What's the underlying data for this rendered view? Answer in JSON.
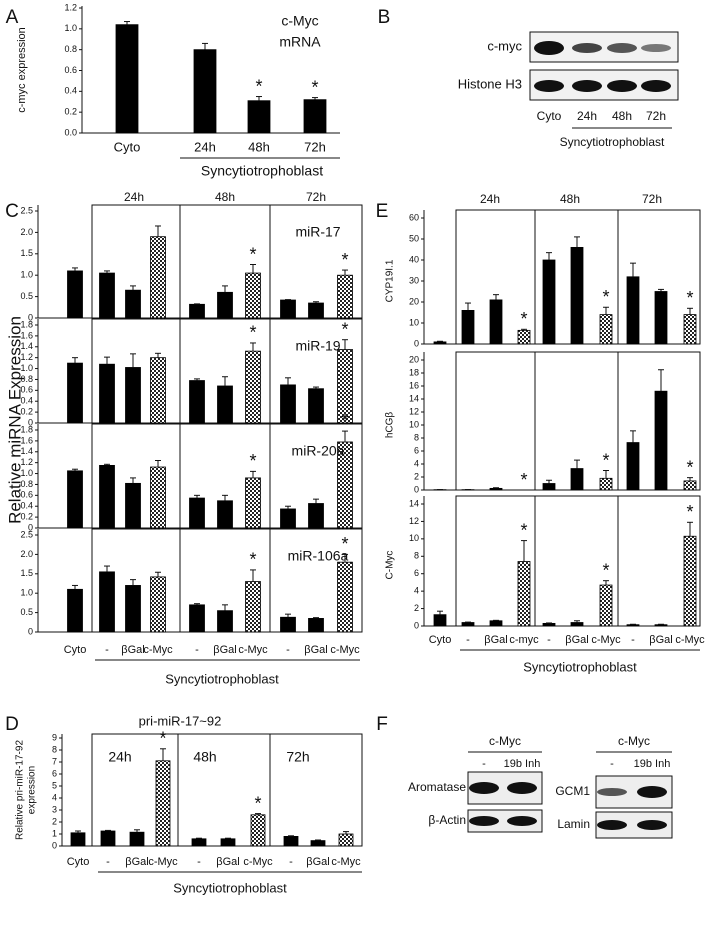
{
  "chart_data": [
    {
      "type": "bar",
      "label": "A",
      "ylabel": "c-myc expression",
      "annotation": [
        "c-Myc",
        "mRNA"
      ],
      "categories": [
        "Cyto",
        "24h",
        "48h",
        "72h"
      ],
      "group_label": "Syncytiotrophoblast",
      "color": "#000000",
      "ylim": [
        0,
        1.2
      ],
      "yticks": [
        {
          "value": 0,
          "label": "0.0"
        },
        0.2,
        0.4,
        0.6,
        0.8,
        {
          "value": 1,
          "label": "1.0"
        },
        1.2
      ],
      "values": [
        1.04,
        0.8,
        0.31,
        0.32
      ],
      "errors": [
        0.03,
        0.06,
        0.04,
        0.02
      ],
      "significance": [
        null,
        null,
        "*",
        "*"
      ]
    },
    {
      "type": "bar",
      "label": "C",
      "ylabel": "Relative miRNA Expression",
      "groups": [
        "24h",
        "48h",
        "72h"
      ],
      "categories": [
        "Cyto",
        "-",
        "βGal",
        "c-Myc",
        "-",
        "βGal",
        "c-Myc",
        "-",
        "βGal",
        "c-Myc"
      ],
      "group_label": "Syncytiotrophoblast",
      "color": "#000000",
      "subplots": [
        {
          "title": "miR-17",
          "ylim": [
            0,
            2.5
          ],
          "yticks": [
            0,
            0.5,
            {
              "value": 1,
              "label": "1.0"
            },
            1.5,
            {
              "value": 2,
              "label": "2.0"
            },
            2.5
          ],
          "values": [
            1.1,
            1.05,
            0.65,
            1.9,
            0.32,
            0.6,
            1.05,
            0.42,
            0.35,
            1.0
          ],
          "errors": [
            0.07,
            0.05,
            0.1,
            0.25,
            0.01,
            0.15,
            0.2,
            0.01,
            0.03,
            0.12
          ],
          "significance": [
            null,
            null,
            null,
            null,
            null,
            null,
            "*",
            null,
            null,
            "*"
          ]
        },
        {
          "title": "miR-19",
          "ylim": [
            0,
            1.8
          ],
          "yticks": [
            0,
            0.2,
            0.4,
            0.6,
            0.8,
            {
              "value": 1,
              "label": "1.0"
            },
            1.2,
            1.4,
            1.6,
            1.8
          ],
          "values": [
            1.1,
            1.08,
            1.02,
            1.2,
            0.78,
            0.68,
            1.32,
            0.7,
            0.63,
            1.35
          ],
          "errors": [
            0.1,
            0.13,
            0.25,
            0.08,
            0.03,
            0.17,
            0.15,
            0.13,
            0.03,
            0.18
          ],
          "significance": [
            null,
            null,
            null,
            null,
            null,
            null,
            "*",
            null,
            null,
            "*"
          ]
        },
        {
          "title": "miR-20a",
          "ylim": [
            0,
            1.8
          ],
          "yticks": [
            0,
            0.2,
            0.4,
            0.6,
            0.8,
            {
              "value": 1,
              "label": "1.0"
            },
            1.2,
            1.4,
            1.6,
            1.8
          ],
          "values": [
            1.05,
            1.15,
            0.82,
            1.12,
            0.55,
            0.5,
            0.92,
            0.35,
            0.45,
            1.58
          ],
          "errors": [
            0.03,
            0.02,
            0.1,
            0.12,
            0.05,
            0.1,
            0.12,
            0.05,
            0.08,
            0.2
          ],
          "significance": [
            null,
            null,
            null,
            null,
            null,
            null,
            "*",
            null,
            null,
            "*"
          ]
        },
        {
          "title": "miR-106a",
          "ylim": [
            0,
            2.5
          ],
          "yticks": [
            0,
            0.5,
            {
              "value": 1,
              "label": "1.0"
            },
            1.5,
            {
              "value": 2,
              "label": "2.0"
            },
            2.5
          ],
          "values": [
            1.1,
            1.55,
            1.2,
            1.42,
            0.7,
            0.55,
            1.3,
            0.38,
            0.35,
            1.8
          ],
          "errors": [
            0.1,
            0.15,
            0.15,
            0.12,
            0.03,
            0.15,
            0.3,
            0.08,
            0.02,
            0.2
          ],
          "significance": [
            null,
            null,
            null,
            null,
            null,
            null,
            "*",
            null,
            null,
            "*"
          ]
        }
      ]
    },
    {
      "type": "bar",
      "label": "D",
      "title": "pri-miR-17~92",
      "ylabel": [
        "Relative pri-miR-17-92",
        "expression"
      ],
      "groups": [
        "24h",
        "48h",
        "72h"
      ],
      "categories": [
        "Cyto",
        "-",
        "βGal",
        "c-Myc",
        "-",
        "βGal",
        "c-Myc",
        "-",
        "βGal",
        "c-Myc"
      ],
      "group_label": "Syncytiotrophoblast",
      "color": "#000000",
      "ylim": [
        0,
        9
      ],
      "yticks": [
        0,
        1,
        2,
        3,
        4,
        5,
        6,
        7,
        8,
        9
      ],
      "values": [
        1.1,
        1.25,
        1.15,
        7.1,
        0.6,
        0.6,
        2.6,
        0.8,
        0.45,
        1.0
      ],
      "errors": [
        0.15,
        0.05,
        0.2,
        1.0,
        0.05,
        0.05,
        0.1,
        0.05,
        0.05,
        0.2
      ],
      "significance": [
        null,
        null,
        null,
        "*",
        null,
        null,
        "*",
        null,
        null,
        null
      ]
    },
    {
      "type": "bar",
      "label": "E",
      "groups": [
        "24h",
        "48h",
        "72h"
      ],
      "categories": [
        "Cyto",
        "-",
        "βGal",
        "c-myc",
        "-",
        "βGal",
        "c-Myc",
        "-",
        "βGal",
        "c-Myc"
      ],
      "group_label": "Syncytiotrophoblast",
      "color": "#000000",
      "subplots": [
        {
          "ylabel": "CYP19I.1",
          "ylim": [
            0,
            60
          ],
          "yticks": [
            0,
            10,
            20,
            30,
            40,
            50,
            60
          ],
          "values": [
            1,
            16,
            21,
            6.5,
            40,
            46,
            14,
            32,
            25,
            14
          ],
          "errors": [
            0.3,
            3.5,
            2.5,
            0.5,
            3.5,
            5,
            3.5,
            6.5,
            1,
            3
          ],
          "significance": [
            null,
            null,
            null,
            "*",
            null,
            null,
            "*",
            null,
            null,
            "*"
          ]
        },
        {
          "ylabel": "hCGβ",
          "ylim": [
            0,
            20
          ],
          "yticks": [
            0,
            2,
            4,
            6,
            8,
            10,
            12,
            14,
            16,
            18,
            20
          ],
          "values": [
            0.05,
            0.05,
            0.25,
            0,
            1,
            3.3,
            1.8,
            7.3,
            15.2,
            1.4
          ],
          "errors": [
            0.02,
            0.02,
            0.1,
            0,
            0.5,
            1.3,
            1.2,
            1.8,
            3.3,
            0.5
          ],
          "significance": [
            null,
            null,
            null,
            "*",
            null,
            null,
            "*",
            null,
            null,
            "*"
          ]
        },
        {
          "ylabel": "C-Myc",
          "ylim": [
            0,
            14
          ],
          "yticks": [
            0,
            2,
            4,
            6,
            8,
            10,
            12,
            14
          ],
          "values": [
            1.3,
            0.4,
            0.6,
            7.4,
            0.3,
            0.4,
            4.7,
            0.15,
            0.15,
            10.3
          ],
          "errors": [
            0.4,
            0.05,
            0.05,
            2.4,
            0.05,
            0.2,
            0.5,
            0.05,
            0.05,
            1.6
          ],
          "significance": [
            null,
            null,
            null,
            "*",
            null,
            null,
            "*",
            null,
            null,
            "*"
          ]
        }
      ]
    }
  ],
  "blots": {
    "B": {
      "label": "B",
      "rows": [
        "c-myc",
        "Histone H3"
      ],
      "lanes": [
        "Cyto",
        "24h",
        "48h",
        "72h"
      ],
      "group_label": "Syncytiotrophoblast"
    },
    "F": {
      "label": "F",
      "panels": [
        {
          "header": "c-Myc",
          "lanes": [
            "-",
            "19b Inh"
          ],
          "rows": [
            "Aromatase",
            "β-Actin"
          ]
        },
        {
          "header": "c-Myc",
          "lanes": [
            "-",
            "19b Inh"
          ],
          "rows": [
            "GCM1",
            "Lamin"
          ]
        }
      ]
    }
  }
}
